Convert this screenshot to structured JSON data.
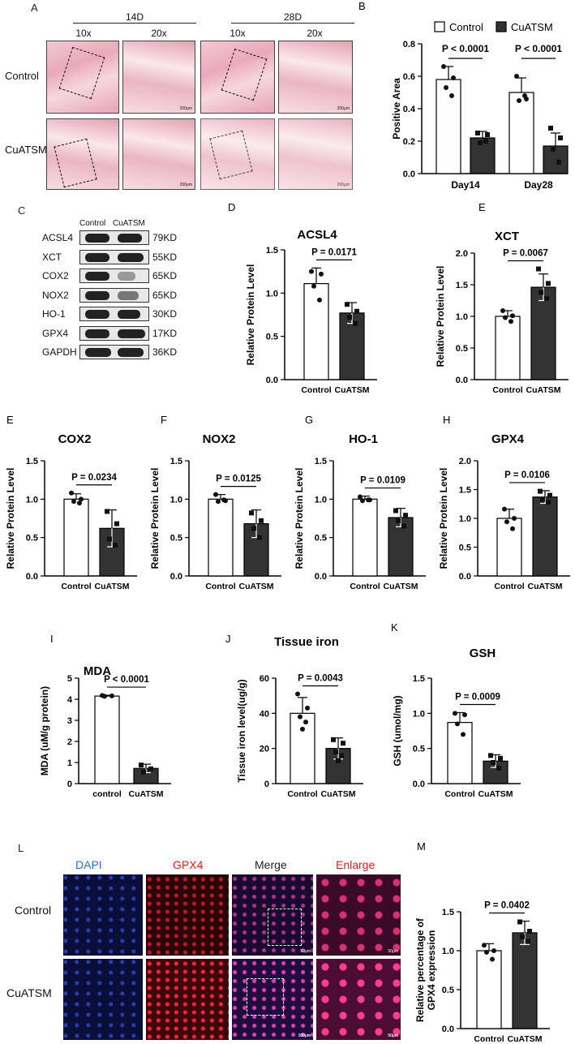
{
  "panels": {
    "A": {
      "letter": "A",
      "time_labels": [
        "14D",
        "28D"
      ],
      "mag_labels": [
        "10x",
        "20x",
        "10x",
        "20x"
      ],
      "row_labels": [
        "Control",
        "CuATSM"
      ],
      "scale_text": "200μm"
    },
    "L": {
      "letter": "L",
      "col_labels": [
        "DAPI",
        "GPX4",
        "Merge",
        "Enlarge"
      ],
      "row_labels": [
        "Control",
        "CuATSM"
      ],
      "scale_text": "50μm",
      "scale_text2": "100μm",
      "colors": {
        "DAPI": "#2b6fd6",
        "GPX4": "#e02020",
        "Merge": "#222222",
        "Enlarge": "#e02020"
      }
    },
    "C": {
      "letter": "C",
      "lanes": [
        "Control",
        "CuATSM"
      ],
      "proteins": [
        {
          "name": "ACSL4",
          "kd": "79KD"
        },
        {
          "name": "XCT",
          "kd": "55KD"
        },
        {
          "name": "COX2",
          "kd": "65KD"
        },
        {
          "name": "NOX2",
          "kd": "65KD"
        },
        {
          "name": "HO-1",
          "kd": "30KD"
        },
        {
          "name": "GPX4",
          "kd": "17KD"
        },
        {
          "name": "GAPDH",
          "kd": "36KD"
        }
      ]
    }
  },
  "chart_data": [
    {
      "id": "B",
      "letter": "B",
      "type": "bar",
      "title": "",
      "ylabel": "Positive Area",
      "categories": [
        "Day14",
        "Day28"
      ],
      "ylim": [
        0,
        0.8
      ],
      "yticks": [
        "0.0",
        "0.2",
        "0.4",
        "0.6",
        "0.8"
      ],
      "series": [
        {
          "name": "Control",
          "values": [
            0.58,
            0.5
          ],
          "errors": [
            0.08,
            0.09
          ],
          "points": [
            [
              0.66,
              0.59,
              0.53,
              0.48
            ],
            [
              0.6,
              0.46,
              0.45,
              0.48
            ]
          ]
        },
        {
          "name": "CuATSM",
          "values": [
            0.22,
            0.17
          ],
          "errors": [
            0.04,
            0.08
          ],
          "points": [
            [
              0.25,
              0.24,
              0.19,
              0.2
            ],
            [
              0.28,
              0.22,
              0.15,
              0.07
            ]
          ]
        }
      ],
      "pvalues": [
        "P < 0.0001",
        "P < 0.0001"
      ],
      "legend": "top"
    },
    {
      "id": "D",
      "letter": "D",
      "type": "bar",
      "title": "ACSL4",
      "ylabel": "Relative Protein Level",
      "categories": [
        "Control",
        "CuATSM"
      ],
      "ylim": [
        0,
        1.5
      ],
      "yticks": [
        "0.0",
        "0.5",
        "1.0",
        "1.5"
      ],
      "values": [
        1.11,
        0.77
      ],
      "errors": [
        0.18,
        0.12
      ],
      "points": [
        [
          1.25,
          1.22,
          1.08,
          0.92
        ],
        [
          0.87,
          0.79,
          0.72,
          0.65
        ]
      ],
      "pvalue": "P = 0.0171"
    },
    {
      "id": "E1",
      "letter": "E",
      "type": "bar",
      "title": "XCT",
      "ylabel": "Relative Protein Level",
      "categories": [
        "Control",
        "CuATSM"
      ],
      "ylim": [
        0,
        2.0
      ],
      "yticks": [
        "0.0",
        "0.5",
        "1.0",
        "1.5",
        "2.0"
      ],
      "values": [
        1.0,
        1.46
      ],
      "errors": [
        0.09,
        0.21
      ],
      "points": [
        [
          1.09,
          1.01,
          0.98,
          0.92
        ],
        [
          1.75,
          1.52,
          1.38,
          1.28
        ]
      ],
      "pvalue": "P = 0.0067"
    },
    {
      "id": "E2",
      "letter": "E",
      "type": "bar",
      "title": "COX2",
      "ylabel": "Relative Protein Level",
      "categories": [
        "Control",
        "CuATSM"
      ],
      "ylim": [
        0,
        1.5
      ],
      "yticks": [
        "0.0",
        "0.5",
        "1.0",
        "1.5"
      ],
      "values": [
        1.0,
        0.62
      ],
      "errors": [
        0.07,
        0.24
      ],
      "points": [
        [
          1.08,
          1.0,
          0.97,
          0.95
        ],
        [
          0.84,
          0.68,
          0.48,
          0.4
        ]
      ],
      "pvalue": "P = 0.0234"
    },
    {
      "id": "F",
      "letter": "F",
      "type": "bar",
      "title": "NOX2",
      "ylabel": "Relative Protein Level",
      "categories": [
        "Control",
        "CuATSM"
      ],
      "ylim": [
        0,
        1.5
      ],
      "yticks": [
        "0.0",
        "0.5",
        "1.0",
        "1.5"
      ],
      "values": [
        1.0,
        0.68
      ],
      "errors": [
        0.06,
        0.18
      ],
      "points": [
        [
          1.06,
          0.98,
          0.97,
          0.99
        ],
        [
          0.82,
          0.72,
          0.62,
          0.5
        ]
      ],
      "pvalue": "P = 0.0125"
    },
    {
      "id": "G",
      "letter": "G",
      "type": "bar",
      "title": "HO-1",
      "ylabel": "Relative Protein Level",
      "categories": [
        "Control",
        "CuATSM"
      ],
      "ylim": [
        0,
        1.5
      ],
      "yticks": [
        "0.0",
        "0.5",
        "1.0",
        "1.5"
      ],
      "values": [
        1.0,
        0.76
      ],
      "errors": [
        0.04,
        0.12
      ],
      "points": [
        [
          1.03,
          0.99,
          0.98,
          0.99
        ],
        [
          0.85,
          0.79,
          0.72,
          0.65
        ]
      ],
      "pvalue": "P = 0.0109"
    },
    {
      "id": "H",
      "letter": "H",
      "type": "bar",
      "title": "GPX4",
      "ylabel": "Relative Protein Level",
      "categories": [
        "Control",
        "CuATSM"
      ],
      "ylim": [
        0,
        2.0
      ],
      "yticks": [
        "0.0",
        "0.5",
        "1.0",
        "1.5",
        "2.0"
      ],
      "values": [
        1.0,
        1.37
      ],
      "errors": [
        0.16,
        0.11
      ],
      "points": [
        [
          1.16,
          1.0,
          0.94,
          0.82
        ],
        [
          1.47,
          1.4,
          1.33,
          1.28
        ]
      ],
      "pvalue": "P = 0.0106"
    },
    {
      "id": "I",
      "letter": "I",
      "type": "bar",
      "title": "MDA",
      "ylabel": "MDA (uM/g protein)",
      "categories": [
        "control",
        "CuATSM"
      ],
      "ylim": [
        0,
        5
      ],
      "yticks": [
        "0",
        "1",
        "2",
        "3",
        "4",
        "5"
      ],
      "values": [
        4.15,
        0.72
      ],
      "errors": [
        0.04,
        0.2
      ],
      "points": [
        [
          4.18,
          4.16,
          4.14
        ],
        [
          0.88,
          0.7,
          0.55
        ]
      ],
      "pvalue": "P < 0.0001"
    },
    {
      "id": "J",
      "letter": "J",
      "type": "bar",
      "title": "Tissue iron",
      "ylabel": "Tissue iron level(ug/g)",
      "categories": [
        "Control",
        "CuATSM"
      ],
      "ylim": [
        0,
        60
      ],
      "yticks": [
        "0",
        "20",
        "40",
        "60"
      ],
      "values": [
        40,
        20
      ],
      "errors": [
        9,
        6
      ],
      "points": [
        [
          51,
          43,
          38,
          35,
          31
        ],
        [
          25,
          23,
          18,
          16,
          13
        ]
      ],
      "pvalue": "P = 0.0043"
    },
    {
      "id": "K",
      "letter": "K",
      "type": "bar",
      "title": "GSH",
      "ylabel": "GSH (umol/mg)",
      "categories": [
        "Control",
        "CuATSM"
      ],
      "ylim": [
        0,
        1.5
      ],
      "yticks": [
        "0.0",
        "0.5",
        "1.0",
        "1.5"
      ],
      "values": [
        0.87,
        0.32
      ],
      "errors": [
        0.14,
        0.09
      ],
      "points": [
        [
          1.0,
          0.98,
          0.85,
          0.7
        ],
        [
          0.4,
          0.36,
          0.3,
          0.22
        ]
      ],
      "pvalue": "P = 0.0009"
    },
    {
      "id": "M",
      "letter": "M",
      "type": "bar",
      "title": "",
      "ylabel": "Relative percentage of GPX4 expression",
      "categories": [
        "Control",
        "CuATSM"
      ],
      "ylim": [
        0,
        1.5
      ],
      "yticks": [
        "0.0",
        "0.5",
        "1.0",
        "1.5"
      ],
      "values": [
        1.0,
        1.23
      ],
      "errors": [
        0.09,
        0.15
      ],
      "points": [
        [
          1.07,
          1.0,
          0.98,
          0.89
        ],
        [
          1.37,
          1.25,
          1.18,
          1.12
        ]
      ],
      "pvalue": "P = 0.0402"
    }
  ]
}
